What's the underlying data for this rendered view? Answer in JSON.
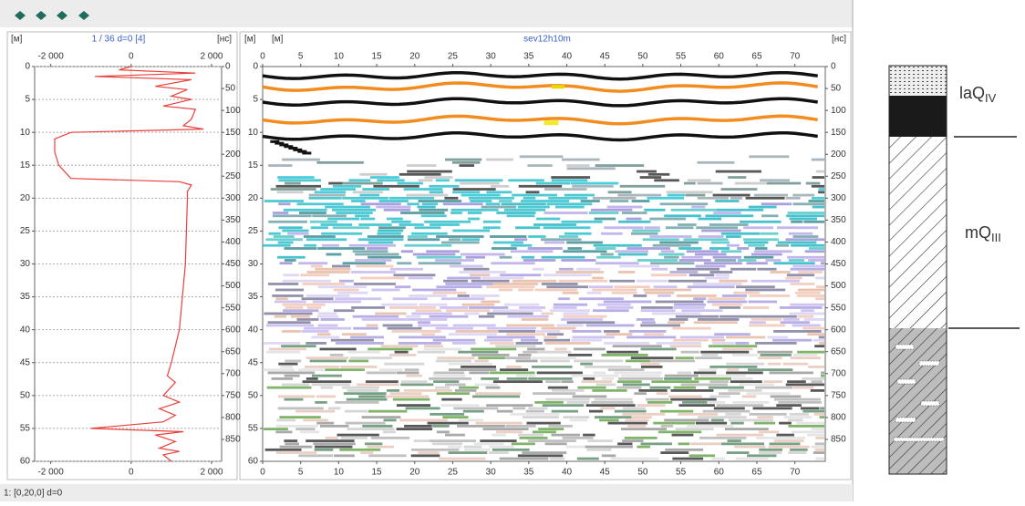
{
  "trace_panel": {
    "unit_left": "[м]",
    "caption": "1 / 36  d=0  [4]",
    "unit_right": "[нс]",
    "xlim": [
      -2400,
      2250
    ],
    "xticks": [
      {
        "value": -2000,
        "label": "-2 000"
      },
      0,
      {
        "value": 2000,
        "label": "2 000"
      }
    ],
    "ylim": [
      0,
      60
    ],
    "yticks": [
      0,
      5,
      10,
      15,
      20,
      25,
      30,
      35,
      40,
      45,
      50,
      55,
      60
    ],
    "y2lim": [
      0,
      900
    ],
    "y2ticks": [
      0,
      50,
      100,
      150,
      200,
      250,
      300,
      350,
      400,
      450,
      500,
      550,
      600,
      650,
      700,
      750,
      800,
      850
    ],
    "color": "#e8413c",
    "grid": true,
    "depth": [
      0,
      0.5,
      1,
      1.5,
      2,
      3,
      3.5,
      4.5,
      5,
      6,
      6.5,
      8,
      9,
      9.5,
      10,
      11,
      13,
      15,
      17,
      17.5,
      18,
      19,
      20,
      30,
      40,
      45,
      47,
      48,
      50,
      51,
      52,
      53,
      54,
      55,
      55.5,
      56,
      57,
      58,
      58.5,
      59,
      60
    ],
    "amplitude": [
      0,
      -300,
      1600,
      -900,
      1500,
      600,
      1400,
      1000,
      1500,
      800,
      1600,
      1500,
      1300,
      1800,
      -1500,
      -1900,
      -1900,
      -1800,
      -1500,
      1200,
      1500,
      1400,
      1400,
      1350,
      1200,
      1000,
      900,
      1100,
      800,
      1200,
      700,
      1100,
      800,
      -1000,
      1300,
      600,
      1100,
      700,
      1200,
      800,
      1000
    ]
  },
  "radargram": {
    "unit_left": "[м]",
    "unit_x": "[м]",
    "title": "sev12h10m",
    "unit_right": "[нс]",
    "xlim": [
      0,
      74
    ],
    "xticks": [
      0,
      5,
      10,
      15,
      20,
      25,
      30,
      35,
      40,
      45,
      50,
      55,
      60,
      65,
      70
    ],
    "ylim": [
      0,
      60
    ],
    "yticks": [
      0,
      5,
      10,
      15,
      20,
      25,
      30,
      35,
      40,
      45,
      50,
      55,
      60
    ],
    "y2lim": [
      0,
      900
    ],
    "y2ticks": [
      0,
      50,
      100,
      150,
      200,
      250,
      300,
      350,
      400,
      450,
      500,
      550,
      600,
      650,
      700,
      750,
      800,
      850
    ]
  },
  "lithology": {
    "layers": [
      {
        "label": "laQ",
        "subscript": "IV"
      },
      {
        "label": "mQ",
        "subscript": "III"
      }
    ]
  },
  "status": "1: [0,20,0] d=0"
}
